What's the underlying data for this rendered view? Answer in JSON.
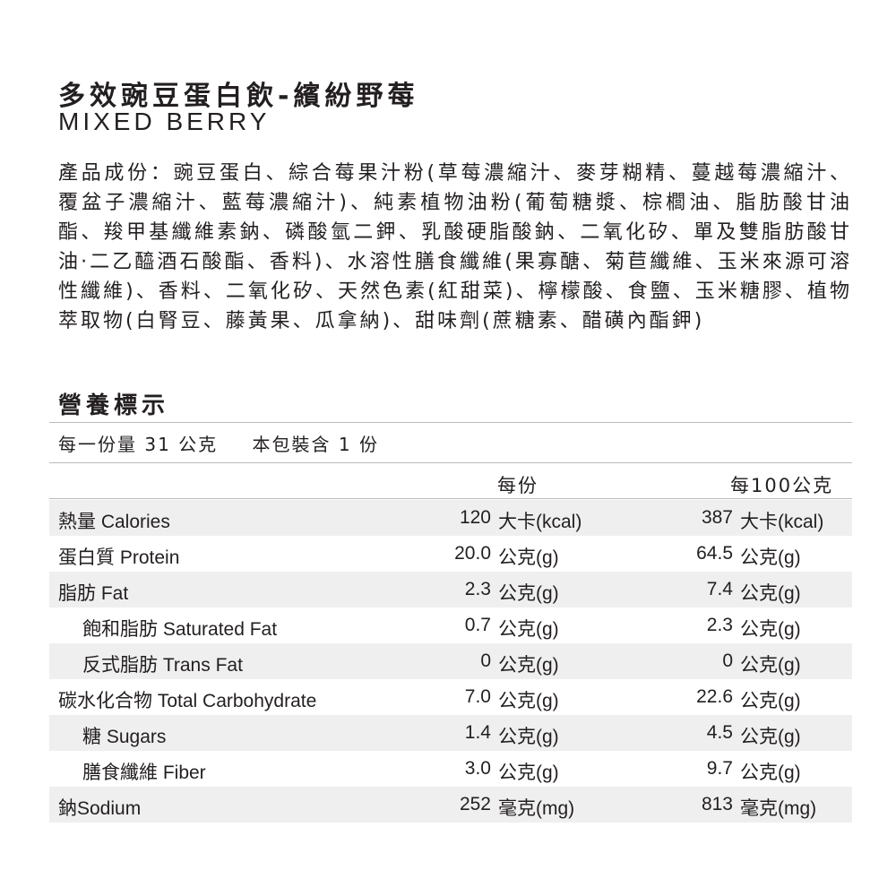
{
  "title": "多效豌豆蛋白飲-繽紛野莓",
  "subtitle": "MIXED BERRY",
  "ingredients": "產品成份：豌豆蛋白、綜合莓果汁粉(草莓濃縮汁、麥芽糊精、蔓越莓濃縮汁、覆盆子濃縮汁、藍莓濃縮汁)、純素植物油粉(葡萄糖漿、棕櫚油、脂肪酸甘油酯、羧甲基纖維素鈉、磷酸氫二鉀、乳酸硬脂酸鈉、二氧化矽、單及雙脂肪酸甘油·二乙醯酒石酸酯、香料)、水溶性膳食纖維(果寡醣、菊苣纖維、玉米來源可溶性纖維)、香料、二氧化矽、天然色素(紅甜菜)、檸檬酸、食鹽、玉米糖膠、植物萃取物(白腎豆、藤黃果、瓜拿納)、甜味劑(蔗糖素、醋磺內酯鉀)",
  "nutrition": {
    "heading": "營養標示",
    "serving_size": "每一份量 31 公克",
    "servings": "本包裝含 1 份",
    "col_per_serving": "每份",
    "col_per_100": "每100公克",
    "rows": [
      {
        "label": "熱量 Calories",
        "v1": "120",
        "u1": "大卡(kcal)",
        "v2": "387",
        "u2": "大卡(kcal)"
      },
      {
        "label": "蛋白質 Protein",
        "v1": "20.0",
        "u1": "公克(g)",
        "v2": "64.5",
        "u2": "公克(g)"
      },
      {
        "label": "脂肪 Fat",
        "v1": "2.3",
        "u1": "公克(g)",
        "v2": "7.4",
        "u2": "公克(g)"
      },
      {
        "label": "飽和脂肪 Saturated Fat",
        "v1": "0.7",
        "u1": "公克(g)",
        "v2": "2.3",
        "u2": "公克(g)"
      },
      {
        "label": "反式脂肪 Trans Fat",
        "v1": "0",
        "u1": "公克(g)",
        "v2": "0",
        "u2": "公克(g)"
      },
      {
        "label": "碳水化合物 Total Carbohydrate",
        "v1": "7.0",
        "u1": "公克(g)",
        "v2": "22.6",
        "u2": "公克(g)"
      },
      {
        "label": "糖 Sugars",
        "v1": "1.4",
        "u1": "公克(g)",
        "v2": "4.5",
        "u2": "公克(g)"
      },
      {
        "label": "膳食纖維 Fiber",
        "v1": "3.0",
        "u1": "公克(g)",
        "v2": "9.7",
        "u2": "公克(g)"
      },
      {
        "label": "鈉Sodium",
        "v1": "252",
        "u1": "毫克(mg)",
        "v2": "813",
        "u2": "毫克(mg)"
      }
    ]
  }
}
